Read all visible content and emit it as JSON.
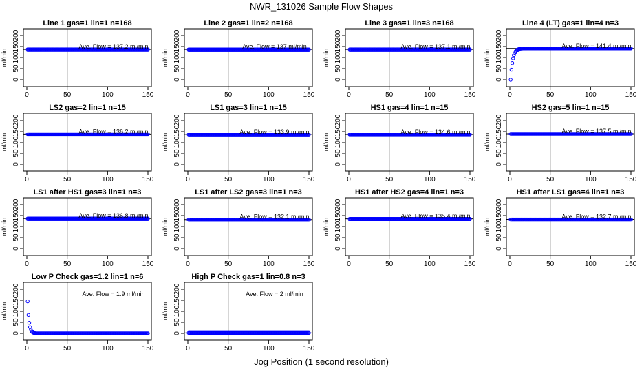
{
  "figure": {
    "title": "NWR_131026  Sample Flow Shapes",
    "xlabel": "Jog Position (1 second resolution)"
  },
  "chart_data": [
    {
      "type": "scatter",
      "title": "Line 1 gas=1 lin=1 n=168",
      "ylabel": "ml/min",
      "annotation": "Ave. Flow = 137.2 ml/min",
      "flow": 137.2,
      "shape": "flat",
      "xlim": [
        0,
        150
      ],
      "ylim": [
        0,
        200
      ],
      "xticks": [
        0,
        50,
        100,
        150
      ],
      "yticks": [
        0,
        50,
        100,
        150,
        200
      ]
    },
    {
      "type": "scatter",
      "title": "Line 2 gas=1 lin=2 n=168",
      "ylabel": "ml/min",
      "annotation": "Ave. Flow = 137 ml/min",
      "flow": 137,
      "shape": "flat",
      "xlim": [
        0,
        150
      ],
      "ylim": [
        0,
        200
      ],
      "xticks": [
        0,
        50,
        100,
        150
      ],
      "yticks": [
        0,
        50,
        100,
        150,
        200
      ]
    },
    {
      "type": "scatter",
      "title": "Line 3 gas=1 lin=3 n=168",
      "ylabel": "ml/min",
      "annotation": "Ave. Flow = 137.1 ml/min",
      "flow": 137.1,
      "shape": "flat",
      "xlim": [
        0,
        150
      ],
      "ylim": [
        0,
        200
      ],
      "xticks": [
        0,
        50,
        100,
        150
      ],
      "yticks": [
        0,
        50,
        100,
        150,
        200
      ]
    },
    {
      "type": "scatter",
      "title": "Line 4 (LT) gas=1 lin=4 n=3",
      "ylabel": "ml/min",
      "annotation": "Ave. Flow = 141.4 ml/min",
      "flow": 141.4,
      "shape": "rise",
      "xlim": [
        0,
        150
      ],
      "ylim": [
        0,
        200
      ],
      "xticks": [
        0,
        50,
        100,
        150
      ],
      "yticks": [
        0,
        50,
        100,
        150,
        200
      ]
    },
    {
      "type": "scatter",
      "title": "LS2 gas=2 lin=1 n=15",
      "ylabel": "ml/min",
      "annotation": "Ave. Flow = 136.2 ml/min",
      "flow": 136.2,
      "shape": "flat",
      "xlim": [
        0,
        150
      ],
      "ylim": [
        0,
        200
      ],
      "xticks": [
        0,
        50,
        100,
        150
      ],
      "yticks": [
        0,
        50,
        100,
        150,
        200
      ]
    },
    {
      "type": "scatter",
      "title": "LS1 gas=3 lin=1 n=15",
      "ylabel": "ml/min",
      "annotation": "Ave. Flow = 133.9 ml/min",
      "flow": 133.9,
      "shape": "flat",
      "xlim": [
        0,
        150
      ],
      "ylim": [
        0,
        200
      ],
      "xticks": [
        0,
        50,
        100,
        150
      ],
      "yticks": [
        0,
        50,
        100,
        150,
        200
      ]
    },
    {
      "type": "scatter",
      "title": "HS1 gas=4 lin=1 n=15",
      "ylabel": "ml/min",
      "annotation": "Ave. Flow = 134.6 ml/min",
      "flow": 134.6,
      "shape": "flat",
      "xlim": [
        0,
        150
      ],
      "ylim": [
        0,
        200
      ],
      "xticks": [
        0,
        50,
        100,
        150
      ],
      "yticks": [
        0,
        50,
        100,
        150,
        200
      ]
    },
    {
      "type": "scatter",
      "title": "HS2 gas=5 lin=1 n=15",
      "ylabel": "ml/min",
      "annotation": "Ave. Flow = 137.5 ml/min",
      "flow": 137.5,
      "shape": "flat",
      "xlim": [
        0,
        150
      ],
      "ylim": [
        0,
        200
      ],
      "xticks": [
        0,
        50,
        100,
        150
      ],
      "yticks": [
        0,
        50,
        100,
        150,
        200
      ]
    },
    {
      "type": "scatter",
      "title": "LS1 after HS1 gas=3 lin=1 n=3",
      "ylabel": "ml/min",
      "annotation": "Ave. Flow = 136.8 ml/min",
      "flow": 136.8,
      "shape": "flat",
      "xlim": [
        0,
        150
      ],
      "ylim": [
        0,
        200
      ],
      "xticks": [
        0,
        50,
        100,
        150
      ],
      "yticks": [
        0,
        50,
        100,
        150,
        200
      ]
    },
    {
      "type": "scatter",
      "title": "LS1 after LS2 gas=3 lin=1 n=3",
      "ylabel": "ml/min",
      "annotation": "Ave. Flow = 132.1 ml/min",
      "flow": 132.1,
      "shape": "flat",
      "xlim": [
        0,
        150
      ],
      "ylim": [
        0,
        200
      ],
      "xticks": [
        0,
        50,
        100,
        150
      ],
      "yticks": [
        0,
        50,
        100,
        150,
        200
      ]
    },
    {
      "type": "scatter",
      "title": "HS1 after HS2 gas=4 lin=1 n=3",
      "ylabel": "ml/min",
      "annotation": "Ave. Flow = 135.4 ml/min",
      "flow": 135.4,
      "shape": "flat",
      "xlim": [
        0,
        150
      ],
      "ylim": [
        0,
        200
      ],
      "xticks": [
        0,
        50,
        100,
        150
      ],
      "yticks": [
        0,
        50,
        100,
        150,
        200
      ]
    },
    {
      "type": "scatter",
      "title": "HS1 after LS1 gas=4 lin=1 n=3",
      "ylabel": "ml/min",
      "annotation": "Ave. Flow = 132.7 ml/min",
      "flow": 132.7,
      "shape": "flat",
      "xlim": [
        0,
        150
      ],
      "ylim": [
        0,
        200
      ],
      "xticks": [
        0,
        50,
        100,
        150
      ],
      "yticks": [
        0,
        50,
        100,
        150,
        200
      ]
    },
    {
      "type": "scatter",
      "title": "Low P Check gas=1.2 lin=1 n=6",
      "ylabel": "ml/min",
      "annotation": "Ave. Flow = 1.9 ml/min",
      "flow": 1.9,
      "shape": "decay",
      "xlim": [
        0,
        150
      ],
      "ylim": [
        0,
        200
      ],
      "xticks": [
        0,
        50,
        100,
        150
      ],
      "yticks": [
        0,
        50,
        100,
        150,
        200
      ]
    },
    {
      "type": "scatter",
      "title": "High P Check gas=1 lin=0.8 n=3",
      "ylabel": "ml/min",
      "annotation": "Ave. Flow = 2 ml/min",
      "flow": 2,
      "shape": "flat",
      "xlim": [
        0,
        150
      ],
      "ylim": [
        0,
        200
      ],
      "xticks": [
        0,
        50,
        100,
        150
      ],
      "yticks": [
        0,
        50,
        100,
        150,
        200
      ]
    }
  ],
  "colors": {
    "points": "#0000ff",
    "axes": "#000000"
  }
}
